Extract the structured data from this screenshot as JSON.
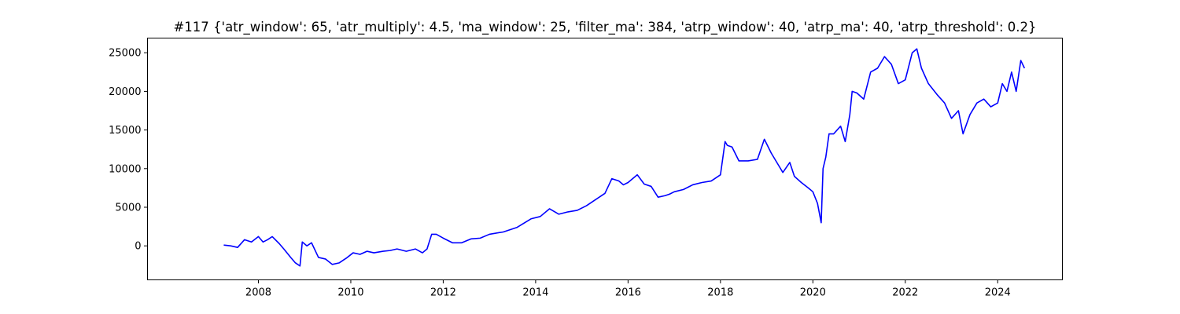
{
  "chart_data": {
    "type": "line",
    "title": "#117 {'atr_window': 65, 'atr_multiply': 4.5, 'ma_window': 25, 'filter_ma': 384, 'atrp_window': 40, 'atrp_ma': 40, 'atrp_threshold': 0.2}",
    "xlabel": "",
    "ylabel": "",
    "xlim": [
      2005.6,
      2025.4
    ],
    "ylim": [
      -4400,
      26900
    ],
    "x_ticks": [
      2008,
      2010,
      2012,
      2014,
      2016,
      2018,
      2020,
      2022,
      2024
    ],
    "x_tick_labels": [
      "2008",
      "2010",
      "2012",
      "2014",
      "2016",
      "2018",
      "2020",
      "2022",
      "2024"
    ],
    "y_ticks": [
      0,
      5000,
      10000,
      15000,
      20000,
      25000
    ],
    "y_tick_labels": [
      "0",
      "5000",
      "10000",
      "15000",
      "20000",
      "25000"
    ],
    "grid": false,
    "series": [
      {
        "color": "#0000ff",
        "x": [
          2007.25,
          2007.4,
          2007.55,
          2007.7,
          2007.85,
          2008.0,
          2008.1,
          2008.2,
          2008.3,
          2008.45,
          2008.55,
          2008.7,
          2008.8,
          2008.9,
          2008.95,
          2009.05,
          2009.15,
          2009.3,
          2009.45,
          2009.6,
          2009.75,
          2009.9,
          2010.05,
          2010.2,
          2010.35,
          2010.5,
          2010.7,
          2010.85,
          2011.0,
          2011.2,
          2011.4,
          2011.55,
          2011.65,
          2011.75,
          2011.85,
          2012.0,
          2012.2,
          2012.4,
          2012.6,
          2012.8,
          2013.0,
          2013.3,
          2013.6,
          2013.9,
          2014.1,
          2014.3,
          2014.5,
          2014.7,
          2014.9,
          2015.1,
          2015.3,
          2015.5,
          2015.65,
          2015.8,
          2015.9,
          2016.0,
          2016.2,
          2016.35,
          2016.5,
          2016.65,
          2016.8,
          2016.9,
          2017.0,
          2017.2,
          2017.4,
          2017.6,
          2017.8,
          2018.0,
          2018.1,
          2018.15,
          2018.25,
          2018.4,
          2018.6,
          2018.8,
          2018.95,
          2019.1,
          2019.25,
          2019.35,
          2019.5,
          2019.6,
          2019.75,
          2019.9,
          2020.0,
          2020.1,
          2020.18,
          2020.22,
          2020.28,
          2020.35,
          2020.45,
          2020.6,
          2020.7,
          2020.8,
          2020.85,
          2020.95,
          2021.1,
          2021.25,
          2021.4,
          2021.55,
          2021.7,
          2021.85,
          2022.0,
          2022.15,
          2022.25,
          2022.35,
          2022.5,
          2022.7,
          2022.85,
          2023.0,
          2023.15,
          2023.25,
          2023.4,
          2023.55,
          2023.7,
          2023.85,
          2024.0,
          2024.1,
          2024.2,
          2024.3,
          2024.4,
          2024.5,
          2024.58
        ],
        "y": [
          100,
          0,
          -200,
          800,
          500,
          1200,
          500,
          800,
          1200,
          300,
          -400,
          -1500,
          -2200,
          -2600,
          500,
          0,
          400,
          -1500,
          -1700,
          -2400,
          -2200,
          -1600,
          -900,
          -1100,
          -700,
          -900,
          -700,
          -600,
          -400,
          -700,
          -400,
          -900,
          -400,
          1500,
          1500,
          1000,
          400,
          400,
          900,
          1000,
          1500,
          1800,
          2400,
          3500,
          3800,
          4800,
          4100,
          4400,
          4600,
          5200,
          6000,
          6800,
          8700,
          8400,
          7900,
          8200,
          9200,
          8000,
          7700,
          6300,
          6500,
          6700,
          7000,
          7300,
          7900,
          8200,
          8400,
          9200,
          13500,
          13000,
          12800,
          11000,
          11000,
          11200,
          13800,
          12000,
          10500,
          9500,
          10800,
          9000,
          8200,
          7500,
          7000,
          5500,
          3000,
          10000,
          11500,
          14500,
          14500,
          15500,
          13500,
          17000,
          20000,
          19800,
          19000,
          22500,
          23000,
          24500,
          23500,
          21000,
          21500,
          25000,
          25500,
          23000,
          21000,
          19500,
          18500,
          16500,
          17500,
          14500,
          17000,
          18500,
          19000,
          18000,
          18500,
          21000,
          20000,
          22500,
          20000,
          24000,
          23000
        ]
      }
    ]
  }
}
